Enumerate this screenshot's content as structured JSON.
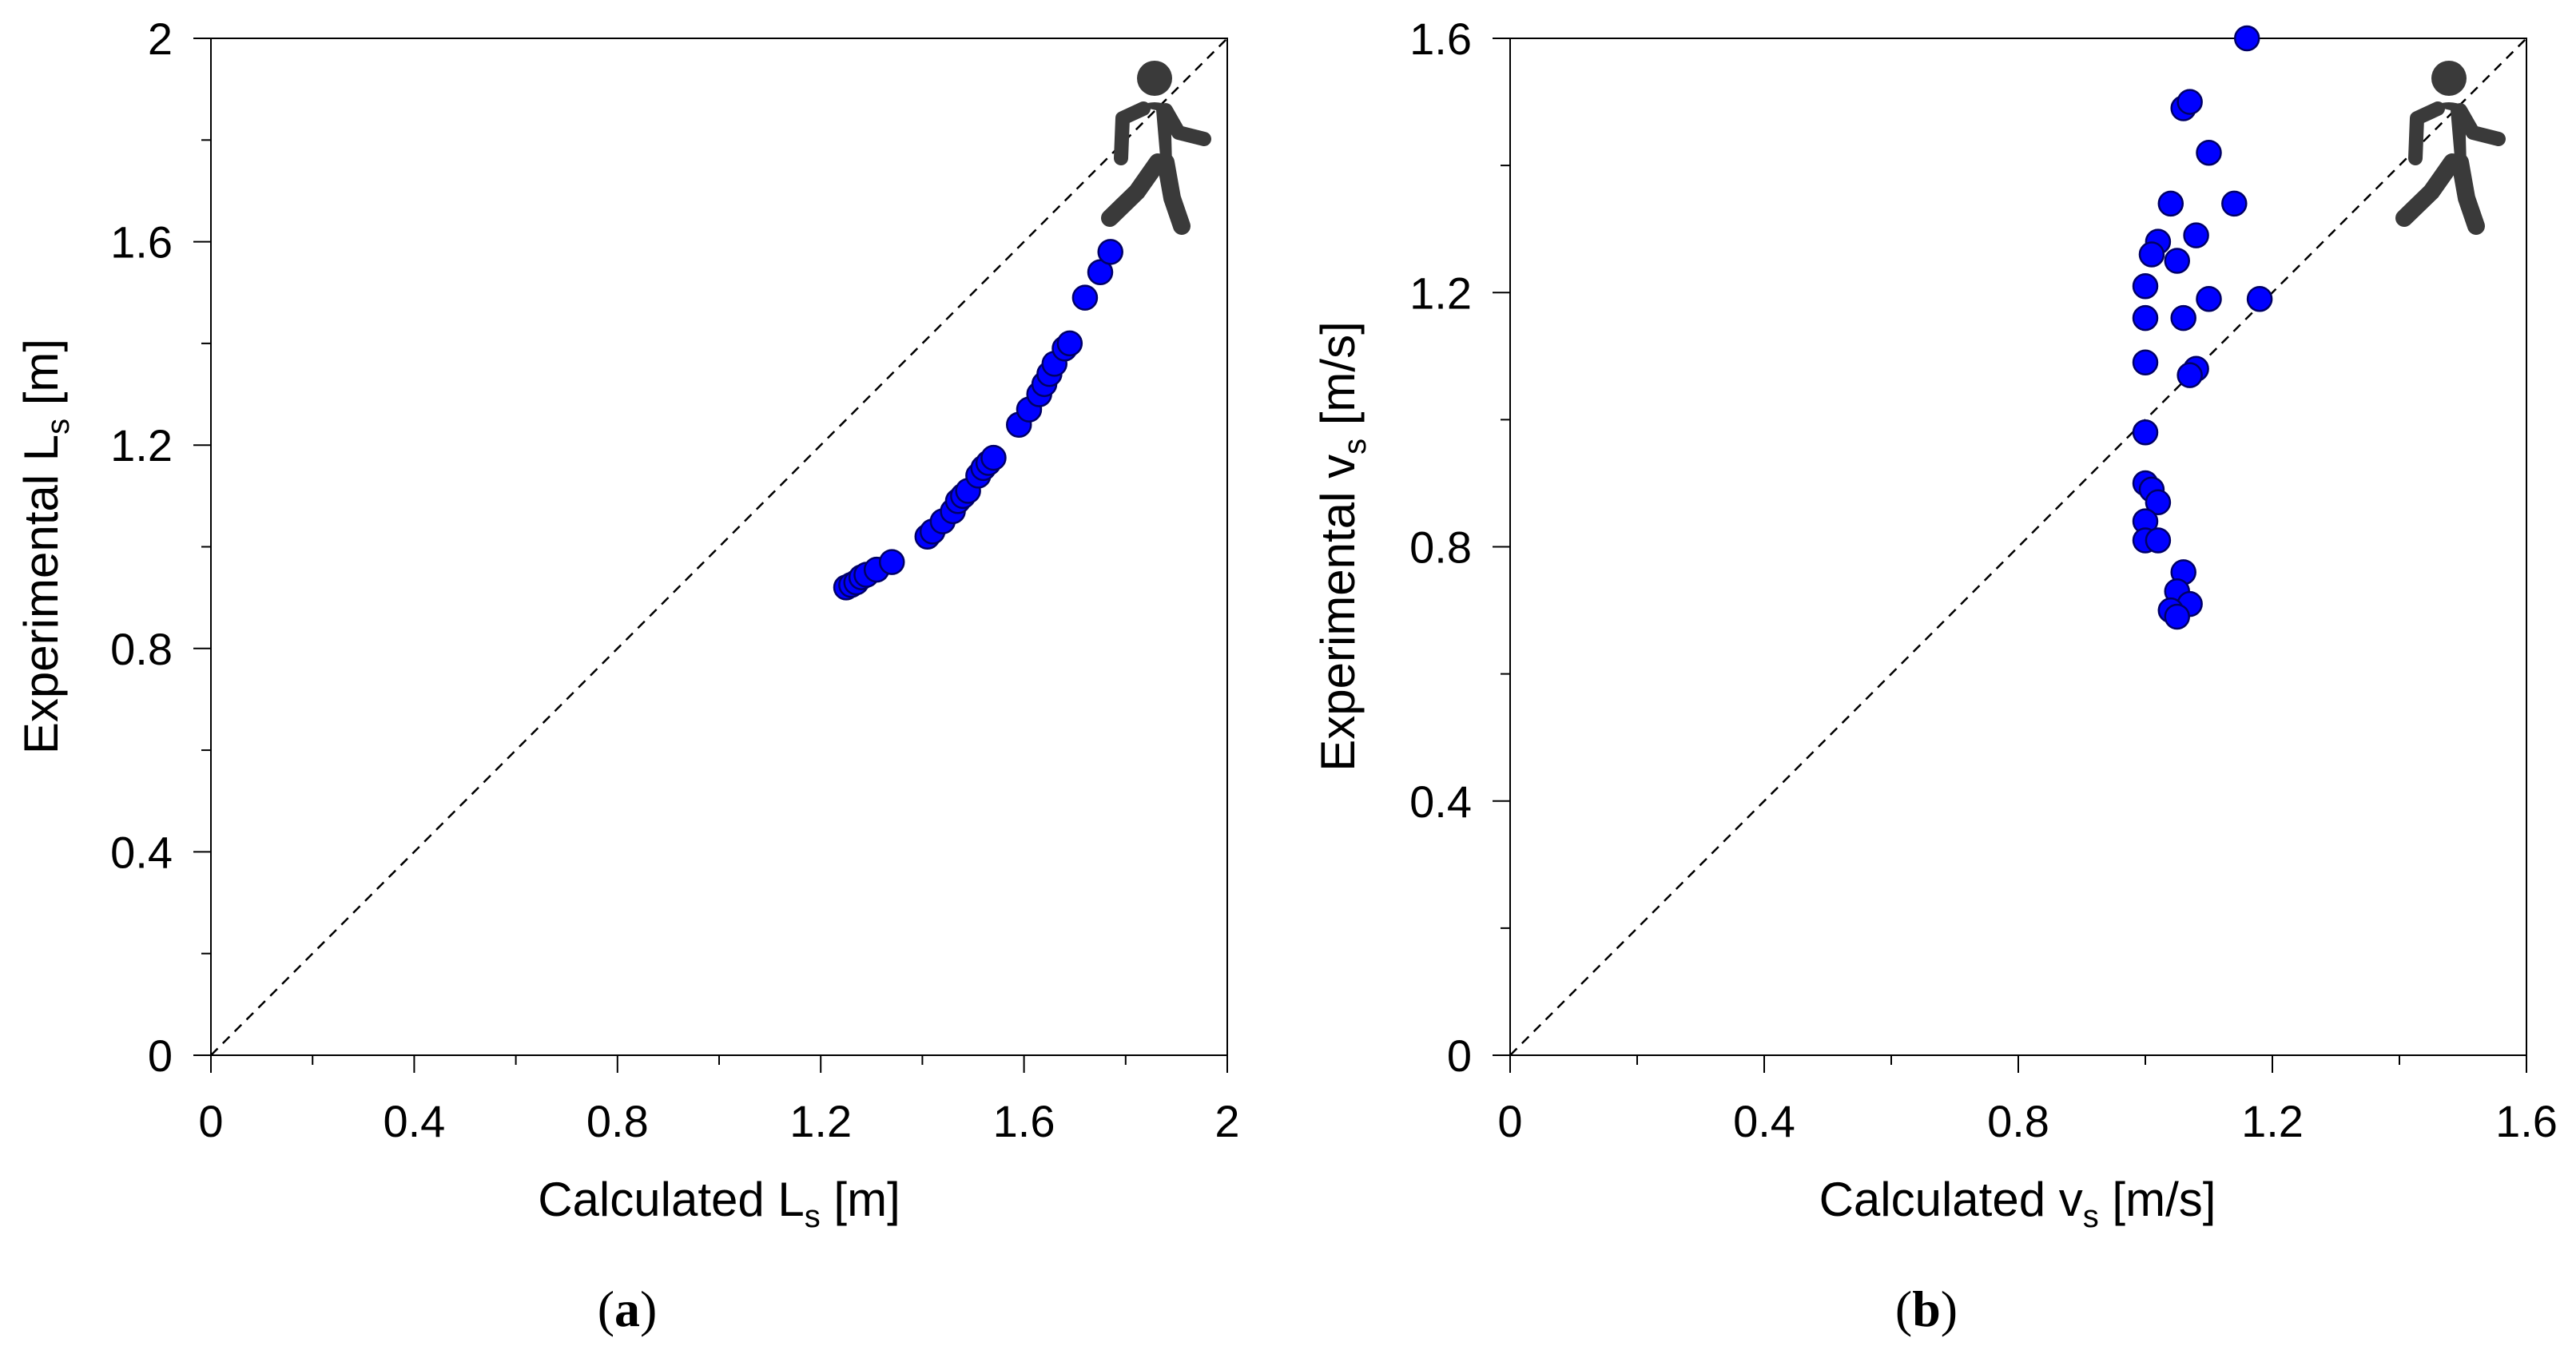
{
  "colors": {
    "point_fill": "#0000ff",
    "point_stroke": "#000066",
    "icon": "#3a3a3a",
    "axis": "#000000"
  },
  "chart_data": [
    {
      "type": "scatter",
      "panel_label": "a",
      "icon": "walking-person-icon",
      "xlabel": {
        "main": "Calculated L",
        "sub": "s",
        "unit": "[m]"
      },
      "ylabel": {
        "main": "Experimental L",
        "sub": "s",
        "unit": "[m]"
      },
      "xlim": [
        0,
        2
      ],
      "ylim": [
        0,
        2
      ],
      "xticks": [
        0,
        0.4,
        0.8,
        1.2,
        1.6,
        2
      ],
      "yticks": [
        0,
        0.4,
        0.8,
        1.2,
        1.6,
        2
      ],
      "xtick_labels": [
        "0",
        "0.4",
        "0.8",
        "1.2",
        "1.6",
        "2"
      ],
      "ytick_labels": [
        "0",
        "0.4",
        "0.8",
        "1.2",
        "1.6",
        "2"
      ],
      "reference_line": "y = x (dashed)",
      "x": [
        1.25,
        1.26,
        1.27,
        1.28,
        1.29,
        1.31,
        1.34,
        1.41,
        1.42,
        1.44,
        1.46,
        1.47,
        1.48,
        1.49,
        1.51,
        1.52,
        1.53,
        1.54,
        1.59,
        1.61,
        1.63,
        1.64,
        1.65,
        1.66,
        1.68,
        1.69,
        1.72,
        1.75,
        1.77
      ],
      "y": [
        0.92,
        0.925,
        0.93,
        0.94,
        0.945,
        0.955,
        0.97,
        1.02,
        1.03,
        1.05,
        1.07,
        1.09,
        1.1,
        1.11,
        1.14,
        1.155,
        1.165,
        1.175,
        1.24,
        1.27,
        1.3,
        1.32,
        1.34,
        1.36,
        1.39,
        1.4,
        1.49,
        1.54,
        1.58
      ]
    },
    {
      "type": "scatter",
      "panel_label": "b",
      "icon": "walking-person-icon",
      "xlabel": {
        "main": "Calculated v",
        "sub": "s",
        "unit": "[m/s]"
      },
      "ylabel": {
        "main": "Experimental v",
        "sub": "s",
        "unit": "[m/s]"
      },
      "xlim": [
        0,
        1.6
      ],
      "ylim": [
        0,
        1.6
      ],
      "xticks": [
        0,
        0.4,
        0.8,
        1.2,
        1.6
      ],
      "yticks": [
        0,
        0.4,
        0.8,
        1.2,
        1.6
      ],
      "xtick_labels": [
        "0",
        "0.4",
        "0.8",
        "1.2",
        "1.6"
      ],
      "ytick_labels": [
        "0",
        "0.4",
        "0.8",
        "1.2",
        "1.6"
      ],
      "reference_line": "y = x (dashed)",
      "x": [
        1.16,
        1.06,
        1.07,
        1.1,
        1.04,
        1.14,
        1.02,
        1.08,
        1.01,
        1.05,
        1.0,
        1.1,
        1.18,
        1.0,
        1.06,
        1.0,
        1.08,
        1.07,
        1.0,
        1.0,
        1.01,
        1.02,
        1.0,
        1.0,
        1.02,
        1.06,
        1.05,
        1.07,
        1.04,
        1.05
      ],
      "y": [
        1.6,
        1.49,
        1.5,
        1.42,
        1.34,
        1.34,
        1.28,
        1.29,
        1.26,
        1.25,
        1.21,
        1.19,
        1.19,
        1.16,
        1.16,
        1.09,
        1.08,
        1.07,
        0.98,
        0.9,
        0.89,
        0.87,
        0.84,
        0.81,
        0.81,
        0.76,
        0.73,
        0.71,
        0.7,
        0.69
      ]
    }
  ]
}
